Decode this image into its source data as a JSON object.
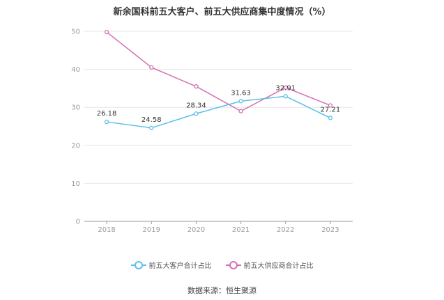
{
  "title": "新余国科前五大客户、前五大供应商集中度情况（%）",
  "source": "数据来源：恒生聚源",
  "colors": {
    "customers": "#5bc0eb",
    "suppliers": "#d46fb4",
    "grid": "#e6e6e6",
    "axis": "#999999",
    "label": "#333333"
  },
  "chart_data": {
    "type": "line",
    "title": "新余国科前五大客户、前五大供应商集中度情况（%）",
    "xlabel": "",
    "ylabel": "",
    "categories": [
      "2018",
      "2019",
      "2020",
      "2021",
      "2022",
      "2023"
    ],
    "ylim": [
      0,
      50
    ],
    "yticks": [
      0,
      10,
      20,
      30,
      40,
      50
    ],
    "grid": true,
    "legend_position": "bottom",
    "series": [
      {
        "name": "前五大客户合计占比",
        "values": [
          26.18,
          24.58,
          28.34,
          31.63,
          32.91,
          27.21
        ],
        "labels": [
          "26.18",
          "24.58",
          "28.34",
          "31.63",
          "32.91",
          "27.21"
        ]
      },
      {
        "name": "前五大供应商合计占比",
        "values": [
          49.8,
          40.5,
          35.5,
          29.0,
          35.2,
          30.5
        ]
      }
    ]
  }
}
